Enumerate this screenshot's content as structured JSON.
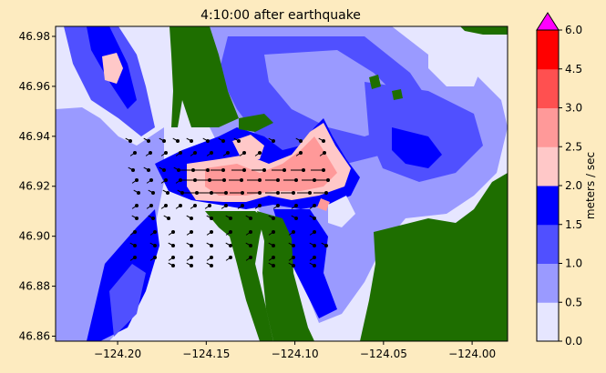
{
  "chart_data": {
    "type": "heatmap",
    "title": "4:10:00 after earthquake",
    "xlabel": "",
    "ylabel": "",
    "xlim": [
      -124.235,
      -123.98
    ],
    "ylim": [
      46.858,
      46.984
    ],
    "x_ticks": [
      -124.2,
      -124.15,
      -124.1,
      -124.05,
      -124.0
    ],
    "x_tick_labels": [
      "−124.20",
      "−124.15",
      "−124.10",
      "−124.05",
      "−124.00"
    ],
    "y_ticks": [
      46.86,
      46.88,
      46.9,
      46.92,
      46.94,
      46.96,
      46.98
    ],
    "y_tick_labels": [
      "46.86",
      "46.88",
      "46.90",
      "46.92",
      "46.94",
      "46.96",
      "46.98"
    ],
    "grid": false,
    "colorbar": {
      "label": "meters / sec",
      "levels": [
        0.0,
        0.5,
        1.0,
        1.5,
        2.0,
        2.5,
        3.0,
        4.5,
        6.0
      ],
      "level_labels": [
        "0.0",
        "0.5",
        "1.0",
        "1.5",
        "2.0",
        "2.5",
        "3.0",
        "4.5",
        "6.0"
      ],
      "colors": [
        "#e6e6ff",
        "#9a9aff",
        "#5050ff",
        "#0000ff",
        "#ffc8c8",
        "#ff9999",
        "#ff5050",
        "#ff0000"
      ],
      "extend_max_color": "#ff00ff"
    },
    "land_color": "#1e6e00"
  }
}
